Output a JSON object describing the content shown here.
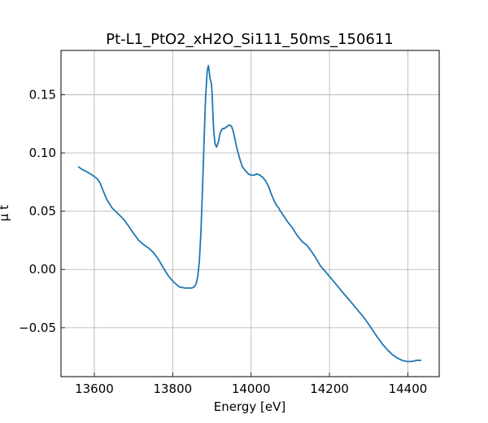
{
  "chart_data": {
    "type": "line",
    "title": "Pt-L1_PtO2_xH2O_Si111_50ms_150611",
    "xlabel": "Energy [eV]",
    "ylabel": "μ t",
    "xlim": [
      13515,
      14480
    ],
    "ylim": [
      -0.092,
      0.188
    ],
    "grid": true,
    "xticks": [
      13600,
      13800,
      14000,
      14200,
      14400
    ],
    "xtick_labels": [
      "13600",
      "13800",
      "14000",
      "14200",
      "14400"
    ],
    "yticks": [
      -0.05,
      0.0,
      0.05,
      0.1,
      0.15
    ],
    "ytick_labels": [
      "−0.05",
      "0.00",
      "0.05",
      "0.10",
      "0.15"
    ],
    "colors": {
      "line": "#1f77b4",
      "grid": "#b0b0b0",
      "axes": "#000000"
    },
    "series": [
      {
        "x": [
          13560,
          13568,
          13580,
          13595,
          13607,
          13615,
          13622,
          13632,
          13645,
          13660,
          13675,
          13688,
          13700,
          13713,
          13727,
          13740,
          13752,
          13763,
          13775,
          13790,
          13803,
          13817,
          13832,
          13848,
          13855,
          13860,
          13864,
          13868,
          13872,
          13876,
          13880,
          13884,
          13888,
          13891,
          13893,
          13895,
          13897,
          13899,
          13901,
          13903,
          13905,
          13908,
          13912,
          13917,
          13921,
          13925,
          13928,
          13932,
          13936,
          13940,
          13945,
          13950,
          13954,
          13957,
          13960,
          13963,
          13967,
          13972,
          13978,
          13985,
          13993,
          14000,
          14008,
          14015,
          14022,
          14030,
          14037,
          14045,
          14050,
          14055,
          14060,
          14065,
          14070,
          14075,
          14083,
          14093,
          14105,
          14118,
          14130,
          14142,
          14153,
          14165,
          14177,
          14190,
          14200,
          14210,
          14220,
          14232,
          14245,
          14260,
          14272,
          14285,
          14298,
          14310,
          14322,
          14335,
          14348,
          14360,
          14373,
          14385,
          14397,
          14410,
          14422,
          14433
        ],
        "y": [
          0.088,
          0.086,
          0.084,
          0.081,
          0.078,
          0.074,
          0.068,
          0.06,
          0.053,
          0.048,
          0.043,
          0.037,
          0.031,
          0.025,
          0.021,
          0.018,
          0.014,
          0.009,
          0.002,
          -0.006,
          -0.011,
          -0.015,
          -0.016,
          -0.016,
          -0.015,
          -0.012,
          -0.006,
          0.007,
          0.032,
          0.068,
          0.11,
          0.148,
          0.17,
          0.175,
          0.171,
          0.164,
          0.162,
          0.159,
          0.148,
          0.13,
          0.118,
          0.108,
          0.105,
          0.11,
          0.117,
          0.12,
          0.121,
          0.121,
          0.122,
          0.123,
          0.124,
          0.123,
          0.119,
          0.115,
          0.11,
          0.105,
          0.1,
          0.094,
          0.088,
          0.085,
          0.082,
          0.081,
          0.081,
          0.082,
          0.081,
          0.079,
          0.076,
          0.071,
          0.066,
          0.062,
          0.058,
          0.055,
          0.053,
          0.05,
          0.046,
          0.041,
          0.036,
          0.029,
          0.024,
          0.021,
          0.016,
          0.01,
          0.003,
          -0.002,
          -0.006,
          -0.01,
          -0.014,
          -0.019,
          -0.024,
          -0.03,
          -0.035,
          -0.04,
          -0.046,
          -0.052,
          -0.058,
          -0.064,
          -0.069,
          -0.073,
          -0.076,
          -0.078,
          -0.079,
          -0.079,
          -0.078,
          -0.078
        ]
      }
    ]
  }
}
